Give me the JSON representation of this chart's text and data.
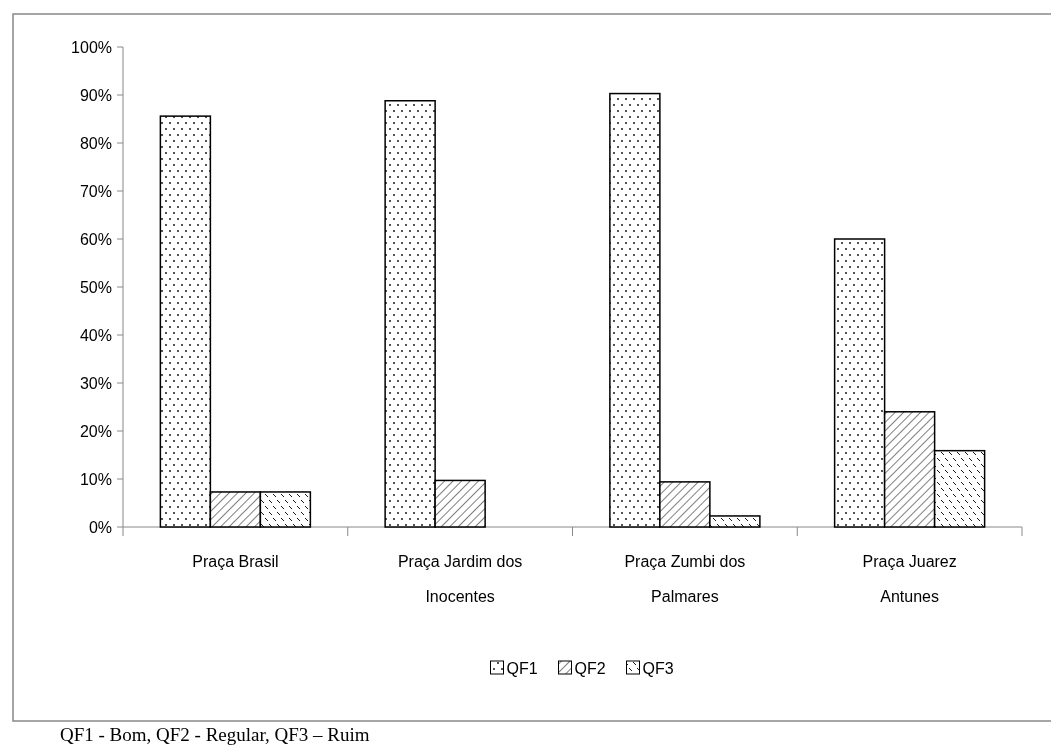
{
  "chart_data": {
    "type": "bar",
    "categories": [
      "Praça Brasil",
      "Praça Jardim dos Inocentes",
      "Praça Zumbi dos Palmares",
      "Praça Juarez Antunes"
    ],
    "series": [
      {
        "name": "QF1",
        "color": "#ffffff",
        "values": [
          85.6,
          88.8,
          90.3,
          60.0
        ]
      },
      {
        "name": "QF2",
        "color": "#ffffff",
        "values": [
          7.3,
          9.7,
          9.4,
          24.0
        ]
      },
      {
        "name": "QF3",
        "color": "#ffffff",
        "values": [
          7.3,
          0,
          2.3,
          15.9
        ]
      }
    ],
    "ylim": [
      0,
      100
    ],
    "yticks": [
      {
        "value": 0,
        "label": "0%"
      },
      {
        "value": 10,
        "label": "10%"
      },
      {
        "value": 20,
        "label": "20%"
      },
      {
        "value": 30,
        "label": "30%"
      },
      {
        "value": 40,
        "label": "40%"
      },
      {
        "value": 50,
        "label": "50%"
      },
      {
        "value": 60,
        "label": "60%"
      },
      {
        "value": 70,
        "label": "70%"
      },
      {
        "value": 80,
        "label": "80%"
      },
      {
        "value": 90,
        "label": "90%"
      },
      {
        "value": 100,
        "label": "100%"
      }
    ],
    "legend": "bottom",
    "annotations": [
      "QF1 - Bom, QF2 - Regular, QF3 – Ruim"
    ]
  }
}
